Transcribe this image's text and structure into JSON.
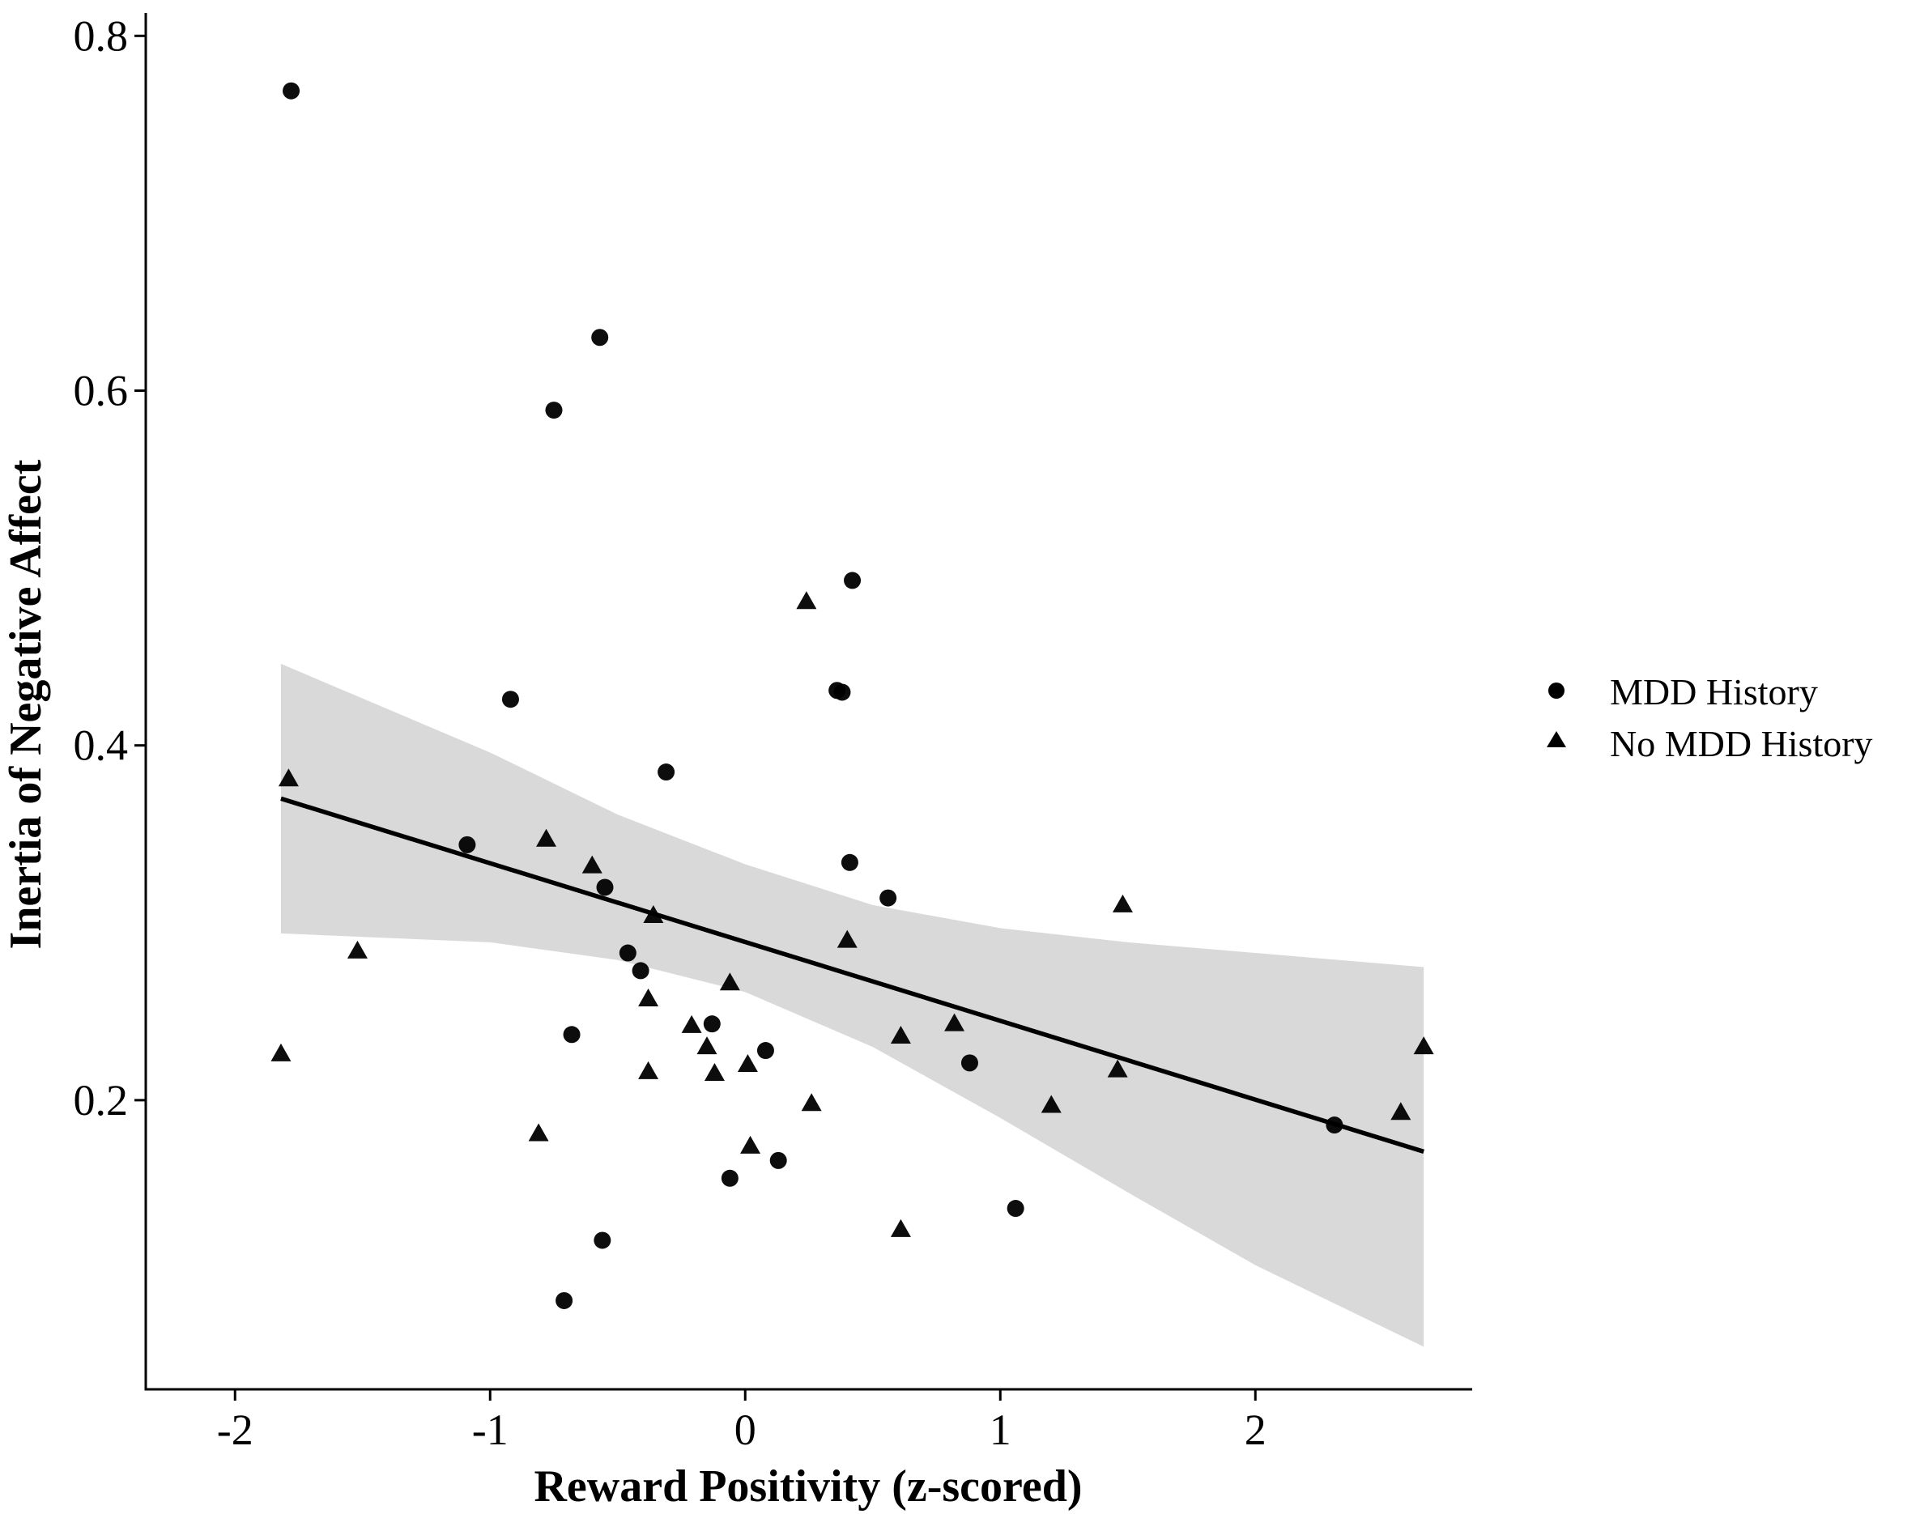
{
  "chart_data": {
    "type": "scatter",
    "xlabel": "Reward Positivity (z-scored)",
    "ylabel": "Inertia of Negative Affect",
    "xlim": [
      -2.35,
      2.85
    ],
    "ylim": [
      0.037,
      0.812
    ],
    "x_ticks": [
      -2,
      -1,
      0,
      1,
      2
    ],
    "x_tick_labels": [
      "-2",
      "-1",
      "0",
      "1",
      "2"
    ],
    "y_ticks": [
      0.2,
      0.4,
      0.6,
      0.8
    ],
    "y_tick_labels": [
      "0.2",
      "0.4",
      "0.6",
      "0.8"
    ],
    "grid": false,
    "legend_position": "right",
    "series": [
      {
        "name": "MDD History",
        "marker": "circle",
        "points": [
          [
            -1.78,
            0.769
          ],
          [
            -0.57,
            0.63
          ],
          [
            -0.75,
            0.589
          ],
          [
            0.42,
            0.493
          ],
          [
            -0.92,
            0.426
          ],
          [
            0.36,
            0.431
          ],
          [
            0.38,
            0.43
          ],
          [
            -0.31,
            0.385
          ],
          [
            -1.09,
            0.344
          ],
          [
            0.41,
            0.334
          ],
          [
            -0.55,
            0.32
          ],
          [
            0.56,
            0.314
          ],
          [
            -0.46,
            0.283
          ],
          [
            -0.41,
            0.273
          ],
          [
            -0.68,
            0.237
          ],
          [
            -0.13,
            0.243
          ],
          [
            0.08,
            0.228
          ],
          [
            0.88,
            0.221
          ],
          [
            2.31,
            0.186
          ],
          [
            0.13,
            0.166
          ],
          [
            -0.06,
            0.156
          ],
          [
            1.06,
            0.139
          ],
          [
            -0.56,
            0.121
          ],
          [
            -0.71,
            0.087
          ]
        ]
      },
      {
        "name": "No MDD History",
        "marker": "triangle",
        "points": [
          [
            0.24,
            0.481
          ],
          [
            -1.79,
            0.381
          ],
          [
            -0.78,
            0.347
          ],
          [
            -0.6,
            0.332
          ],
          [
            -0.36,
            0.304
          ],
          [
            0.4,
            0.29
          ],
          [
            1.48,
            0.31
          ],
          [
            -1.52,
            0.284
          ],
          [
            -0.06,
            0.266
          ],
          [
            -0.38,
            0.257
          ],
          [
            -0.21,
            0.242
          ],
          [
            0.82,
            0.243
          ],
          [
            0.61,
            0.236
          ],
          [
            -0.15,
            0.23
          ],
          [
            2.66,
            0.23
          ],
          [
            0.01,
            0.22
          ],
          [
            -1.82,
            0.226
          ],
          [
            -0.38,
            0.216
          ],
          [
            -0.12,
            0.215
          ],
          [
            1.46,
            0.217
          ],
          [
            0.26,
            0.198
          ],
          [
            1.2,
            0.197
          ],
          [
            2.57,
            0.193
          ],
          [
            -0.81,
            0.181
          ],
          [
            0.02,
            0.174
          ],
          [
            0.61,
            0.127
          ]
        ]
      }
    ],
    "fit_line": {
      "x": [
        -1.82,
        2.66
      ],
      "y": [
        0.37,
        0.171
      ]
    },
    "confidence_band": {
      "x": [
        -1.82,
        -1.0,
        -0.5,
        0.0,
        0.5,
        1.0,
        1.5,
        2.0,
        2.66
      ],
      "upper": [
        0.446,
        0.396,
        0.361,
        0.333,
        0.31,
        0.297,
        0.289,
        0.283,
        0.275
      ],
      "lower": [
        0.294,
        0.289,
        0.279,
        0.261,
        0.23,
        0.19,
        0.148,
        0.107,
        0.061
      ]
    },
    "colors": {
      "points": "#000000",
      "band": "#d9d9d9",
      "fit_line": "#000000",
      "axis": "#000000"
    }
  }
}
